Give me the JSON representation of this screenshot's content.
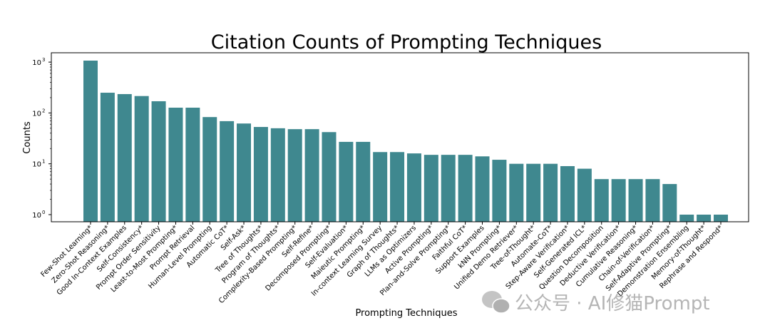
{
  "chart_data": {
    "type": "bar",
    "title": "Citation Counts of Prompting Techniques",
    "xlabel": "Prompting Techniques",
    "ylabel": "Counts",
    "yscale": "log",
    "ylim": [
      0.7,
      1300
    ],
    "yticks": [
      {
        "value": 1,
        "label": "10",
        "exp": "0"
      },
      {
        "value": 10,
        "label": "10",
        "exp": "1"
      },
      {
        "value": 100,
        "label": "10",
        "exp": "2"
      },
      {
        "value": 1000,
        "label": "10",
        "exp": "3"
      }
    ],
    "bar_color": "#3f888f",
    "categories": [
      "Few-Shot Learning*",
      "Zero-Shot Reasoning*",
      "Good In-Context Examples",
      "Self-Consistency*",
      "Prompt Order Sensitivity",
      "Least-to-Most Prompting*",
      "Prompt Retrieval",
      "Human-Level Prompting",
      "Automatic CoT*",
      "Self-Ask*",
      "Tree of Thoughts*",
      "Program of Thoughts*",
      "Complexity-Based Prompting*",
      "Self-Refine*",
      "Decomposed Prompting*",
      "Self-Evaluation*",
      "Maieutic Prompting*",
      "In-context Learning Survey",
      "Graph of Thoughts*",
      "LLMs as Optimizers",
      "Active Prompting*",
      "Plan-and-Solve Prompting*",
      "Faithful CoT*",
      "Support Examples",
      "kNN Prompting*",
      "Unified Demo Retriever*",
      "Tree-of-Thought*",
      "Automate-CoT*",
      "Step-Aware Verification*",
      "Self-Generated ICL*",
      "Question Decomposition",
      "Deductive Verification*",
      "Cumulative Reasoning*",
      "Chain-of-Verification*",
      "Self-Adaptive Prompting*",
      "Demonstration Ensembling",
      "Memory-of-Thought*",
      "Rephrase and Respond*"
    ],
    "values": [
      1070,
      250,
      235,
      215,
      170,
      127,
      127,
      83,
      69,
      62,
      53,
      50,
      48,
      48,
      42,
      27,
      27,
      17,
      17,
      16,
      15,
      15,
      15,
      14,
      12,
      10,
      10,
      10,
      9,
      8,
      5,
      5,
      5,
      5,
      4,
      1,
      1,
      1
    ]
  },
  "watermark": "公众号 · AI修猫Prompt"
}
